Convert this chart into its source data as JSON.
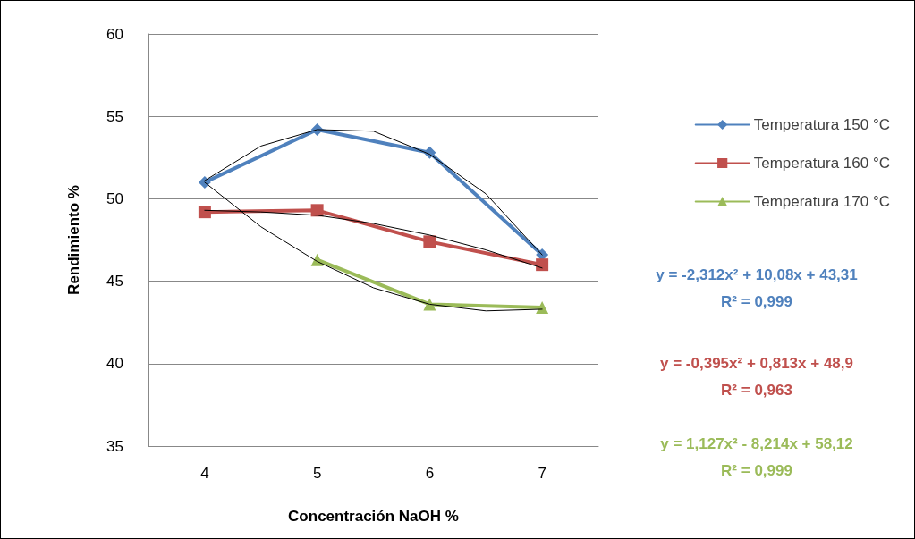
{
  "chart_data": {
    "type": "line",
    "xlabel": "Concentración NaOH %",
    "ylabel": "Rendimiento %",
    "x": [
      4,
      5,
      6,
      7
    ],
    "series": [
      {
        "name": "Temperatura 150 °C",
        "color": "#4f81bd",
        "marker": "diamond",
        "values": [
          51.0,
          54.2,
          52.8,
          46.6
        ]
      },
      {
        "name": "Temperatura 160 °C",
        "color": "#c0504d",
        "marker": "square",
        "values": [
          49.2,
          49.3,
          47.4,
          46.0
        ]
      },
      {
        "name": "Temperatura 170 °C",
        "color": "#9bbb59",
        "marker": "triangle",
        "x": [
          5,
          6,
          7
        ],
        "values": [
          46.3,
          43.6,
          43.4
        ]
      },
      {
        "color": "#000000",
        "marker": "none",
        "x": [
          4,
          4.5,
          5,
          5.5,
          6,
          6.5,
          7
        ],
        "values": [
          51.1,
          53.2,
          54.2,
          54.1,
          52.7,
          50.3,
          46.6
        ]
      },
      {
        "color": "#000000",
        "marker": "none",
        "x": [
          4,
          4.5,
          5,
          5.5,
          6,
          6.5,
          7
        ],
        "values": [
          49.3,
          49.2,
          49.0,
          48.5,
          47.8,
          46.9,
          45.8
        ]
      },
      {
        "color": "#000000",
        "marker": "none",
        "x": [
          4,
          4.5,
          5,
          5.5,
          6,
          6.5,
          7
        ],
        "values": [
          51.0,
          48.3,
          46.2,
          44.6,
          43.6,
          43.2,
          43.3
        ]
      }
    ],
    "xlim": [
      3.5,
      7.5
    ],
    "xticks": [
      4,
      5,
      6,
      7
    ],
    "ylim": [
      35,
      60
    ],
    "yticks": [
      35,
      40,
      45,
      50,
      55,
      60
    ],
    "grid": "y",
    "legend": "right",
    "annotations": [
      "y = -2,312x² + 10,08x + 43,31",
      "R² = 0,999",
      "y = -0,395x² + 0,813x + 48,9",
      "R² = 0,963",
      "y = 1,127x² - 8,214x + 58,12",
      "R² = 0,999"
    ]
  }
}
